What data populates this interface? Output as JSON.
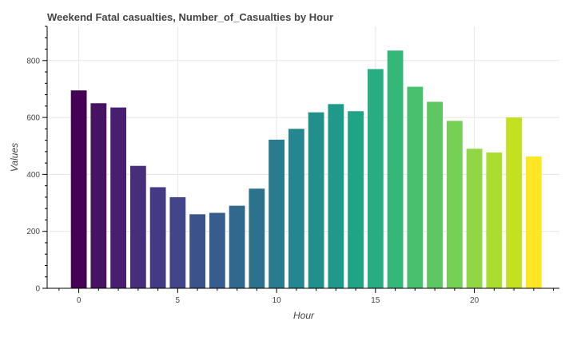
{
  "chart_data": {
    "type": "bar",
    "title": "Weekend Fatal casualties, Number_of_Casualties by Hour",
    "xlabel": "Hour",
    "ylabel": "Values",
    "x": [
      0,
      1,
      2,
      3,
      4,
      5,
      6,
      7,
      8,
      9,
      10,
      11,
      12,
      13,
      14,
      15,
      16,
      17,
      18,
      19,
      20,
      21,
      22,
      23
    ],
    "values": [
      695,
      650,
      635,
      430,
      355,
      320,
      260,
      265,
      290,
      350,
      522,
      560,
      618,
      647,
      622,
      770,
      835,
      708,
      655,
      588,
      490,
      477,
      600,
      463
    ],
    "xlim": [
      -1.6,
      24.3
    ],
    "ylim": [
      0,
      920
    ],
    "xticks": [
      0,
      5,
      10,
      15,
      20
    ],
    "xtick_labels": [
      "0",
      "5",
      "10",
      "15",
      "20"
    ],
    "yticks": [
      0,
      200,
      400,
      600,
      800
    ],
    "ytick_labels": [
      "0",
      "200",
      "400",
      "600",
      "800"
    ],
    "grid": true,
    "colormap": "viridis",
    "colors": [
      "#440154",
      "#471164",
      "#481f70",
      "#472d7b",
      "#443983",
      "#404688",
      "#3b528b",
      "#365d8d",
      "#31688e",
      "#2c728e",
      "#287c8e",
      "#24868e",
      "#21908d",
      "#1f9a8a",
      "#20a486",
      "#27ad81",
      "#35b779",
      "#47c16e",
      "#5dc863",
      "#75d054",
      "#8fd744",
      "#aadc32",
      "#c5e021",
      "#fde725"
    ]
  }
}
